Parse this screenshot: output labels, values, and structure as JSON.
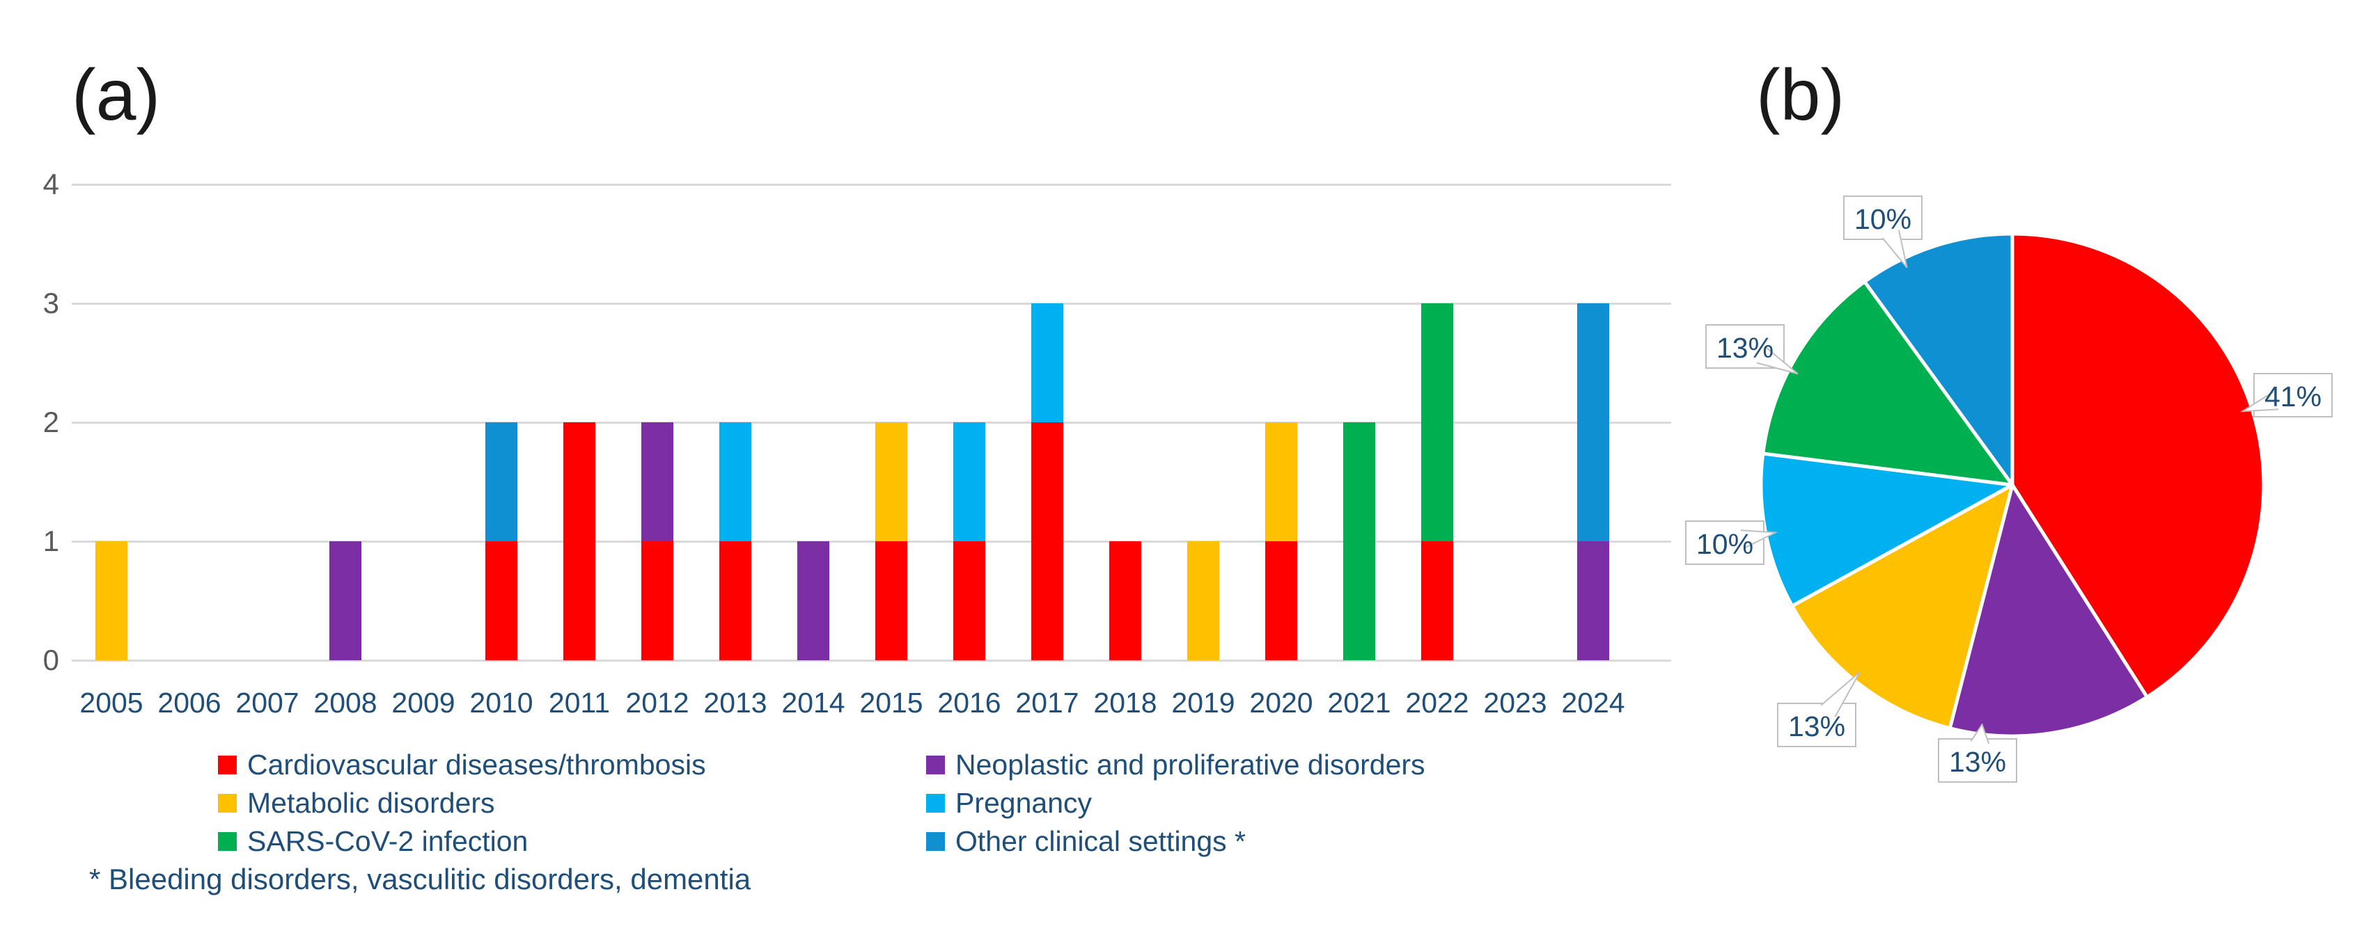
{
  "panel_a": {
    "title": "(a)"
  },
  "panel_b": {
    "title": "(b)"
  },
  "footnote": "* Bleeding disorders, vasculitic disorders, dementia",
  "colors": {
    "cardiovascular_red": "#FF0000",
    "neoplastic_purple": "#7C2EA4",
    "metabolic_gold": "#FFC000",
    "pregnancy_lightblue": "#00B0F0",
    "sars_green": "#00B050",
    "other_blue": "#0E90D2",
    "axis_text_navy": "#1F4E79",
    "ytick_gray": "#595959",
    "gridline_gray": "#D9D9D9",
    "callout_border_gray": "#BFBFBF",
    "callout_fill": "#FFFFFF"
  },
  "legend": {
    "items": [
      {
        "label": "Cardiovascular diseases/thrombosis",
        "color": "#FF0000",
        "col": 0,
        "row": 0
      },
      {
        "label": "Metabolic disorders",
        "color": "#FFC000",
        "col": 0,
        "row": 1
      },
      {
        "label": "SARS-CoV-2 infection",
        "color": "#00B050",
        "col": 0,
        "row": 2
      },
      {
        "label": "Neoplastic and proliferative disorders",
        "color": "#7C2EA4",
        "col": 1,
        "row": 0
      },
      {
        "label": "Pregnancy",
        "color": "#00B0F0",
        "col": 1,
        "row": 1
      },
      {
        "label": "Other clinical settings *",
        "color": "#0E90D2",
        "col": 1,
        "row": 2
      }
    ]
  },
  "chart_data": [
    {
      "type": "bar",
      "stacked": true,
      "title": "(a)",
      "categories": [
        "2005",
        "2006",
        "2007",
        "2008",
        "2009",
        "2010",
        "2011",
        "2012",
        "2013",
        "2014",
        "2015",
        "2016",
        "2017",
        "2018",
        "2019",
        "2020",
        "2021",
        "2022",
        "2023",
        "2024"
      ],
      "series": [
        {
          "name": "Cardiovascular diseases/thrombosis",
          "color": "#FF0000",
          "values": [
            0,
            0,
            0,
            0,
            0,
            1,
            2,
            1,
            1,
            0,
            1,
            1,
            2,
            1,
            0,
            1,
            0,
            1,
            0,
            0
          ]
        },
        {
          "name": "Neoplastic and proliferative disorders",
          "color": "#7C2EA4",
          "values": [
            0,
            0,
            0,
            1,
            0,
            0,
            0,
            1,
            0,
            1,
            0,
            0,
            0,
            0,
            0,
            0,
            0,
            0,
            0,
            1
          ]
        },
        {
          "name": "Metabolic disorders",
          "color": "#FFC000",
          "values": [
            1,
            0,
            0,
            0,
            0,
            0,
            0,
            0,
            0,
            0,
            1,
            0,
            0,
            0,
            1,
            1,
            0,
            0,
            0,
            0
          ]
        },
        {
          "name": "Pregnancy",
          "color": "#00B0F0",
          "values": [
            0,
            0,
            0,
            0,
            0,
            0,
            0,
            0,
            1,
            0,
            0,
            1,
            1,
            0,
            0,
            0,
            0,
            0,
            0,
            0
          ]
        },
        {
          "name": "SARS-CoV-2 infection",
          "color": "#00B050",
          "values": [
            0,
            0,
            0,
            0,
            0,
            0,
            0,
            0,
            0,
            0,
            0,
            0,
            0,
            0,
            0,
            0,
            2,
            2,
            0,
            0
          ]
        },
        {
          "name": "Other clinical settings *",
          "color": "#0E90D2",
          "values": [
            0,
            0,
            0,
            0,
            0,
            1,
            0,
            0,
            0,
            0,
            0,
            0,
            0,
            0,
            0,
            0,
            0,
            0,
            0,
            2
          ]
        }
      ],
      "ylabel": "",
      "xlabel": "",
      "ylim": [
        0,
        4
      ],
      "y_ticks": [
        "0",
        "1",
        "2",
        "3",
        "4"
      ],
      "grid": true,
      "legend_position": "bottom"
    },
    {
      "type": "pie",
      "title": "(b)",
      "start_angle_deg": 0,
      "direction": "clockwise",
      "slices": [
        {
          "name": "Cardiovascular diseases/thrombosis",
          "label": "41%",
          "value": 41,
          "color": "#FF0000",
          "label_pos": [
            913,
            568
          ]
        },
        {
          "name": "Neoplastic and proliferative disorders",
          "label": "13%",
          "value": 13,
          "color": "#7C2EA4",
          "label_pos": [
            460,
            1093
          ]
        },
        {
          "name": "Metabolic disorders",
          "label": "13%",
          "value": 13,
          "color": "#FFC000",
          "label_pos": [
            229,
            1042
          ]
        },
        {
          "name": "Pregnancy",
          "label": "10%",
          "value": 10,
          "color": "#00B0F0",
          "label_pos": [
            97,
            780
          ]
        },
        {
          "name": "SARS-CoV-2 infection",
          "label": "13%",
          "value": 13,
          "color": "#00B050",
          "label_pos": [
            126,
            498
          ]
        },
        {
          "name": "Other clinical settings *",
          "label": "10%",
          "value": 10,
          "color": "#0E90D2",
          "label_pos": [
            324,
            313
          ]
        }
      ]
    }
  ]
}
